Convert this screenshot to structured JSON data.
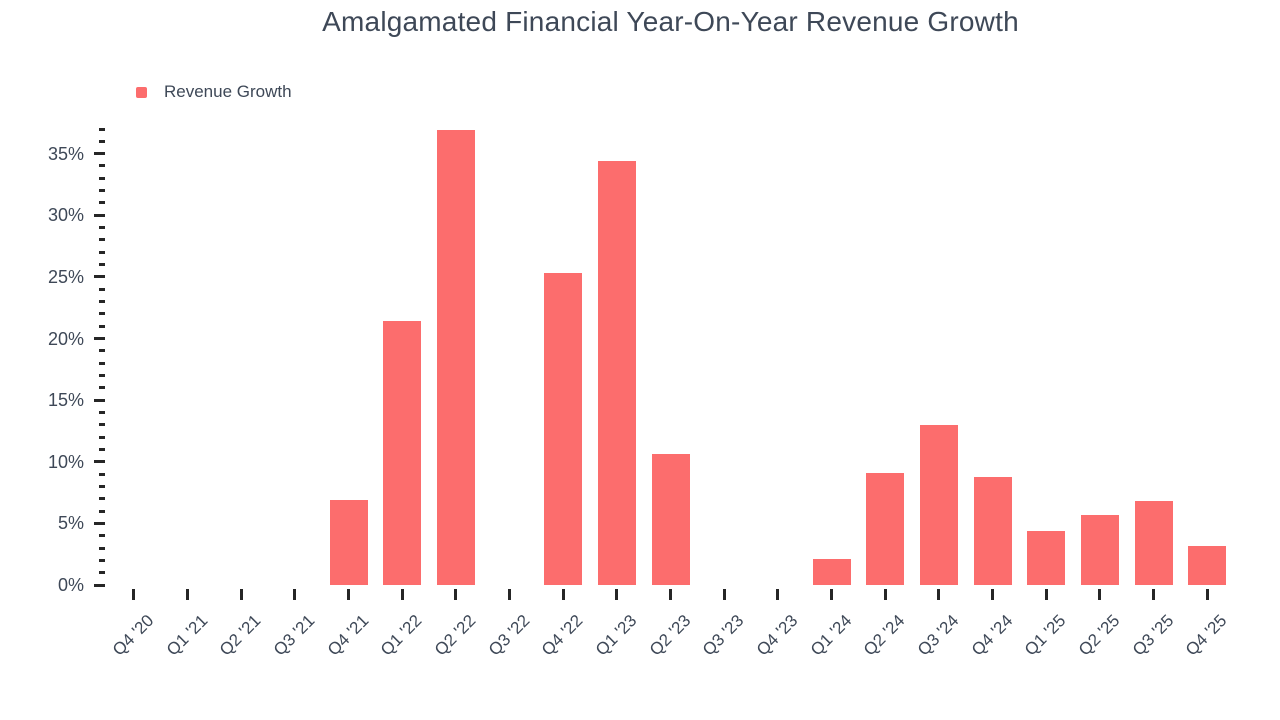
{
  "chart_data": {
    "type": "bar",
    "title": "Amalgamated Financial Year-On-Year Revenue Growth",
    "legend": {
      "label": "Revenue Growth",
      "position": "top-left"
    },
    "series_name": "Revenue Growth",
    "categories": [
      "Q4 '20",
      "Q1 '21",
      "Q2 '21",
      "Q3 '21",
      "Q4 '21",
      "Q1 '22",
      "Q2 '22",
      "Q3 '22",
      "Q4 '22",
      "Q1 '23",
      "Q2 '23",
      "Q3 '23",
      "Q4 '23",
      "Q1 '24",
      "Q2 '24",
      "Q3 '24",
      "Q4 '24",
      "Q1 '25",
      "Q2 '25",
      "Q3 '25",
      "Q4 '25"
    ],
    "values": [
      null,
      null,
      null,
      null,
      6.9,
      21.4,
      36.9,
      null,
      25.3,
      34.4,
      10.6,
      null,
      null,
      2.1,
      9.1,
      13.0,
      8.8,
      4.4,
      5.7,
      6.8,
      3.2
    ],
    "unit": "%",
    "xlabel": "",
    "ylabel": "",
    "ylim": [
      0,
      37
    ],
    "ytick_major_step": 5,
    "ytick_minor_step": 1,
    "ytick_labels": [
      "0%",
      "5%",
      "10%",
      "15%",
      "20%",
      "25%",
      "30%",
      "35%"
    ],
    "grid": false,
    "colors": {
      "bar": "#FC6D6D",
      "text": "#3E4857",
      "tick": "#262626",
      "background": "#FFFFFF"
    }
  }
}
